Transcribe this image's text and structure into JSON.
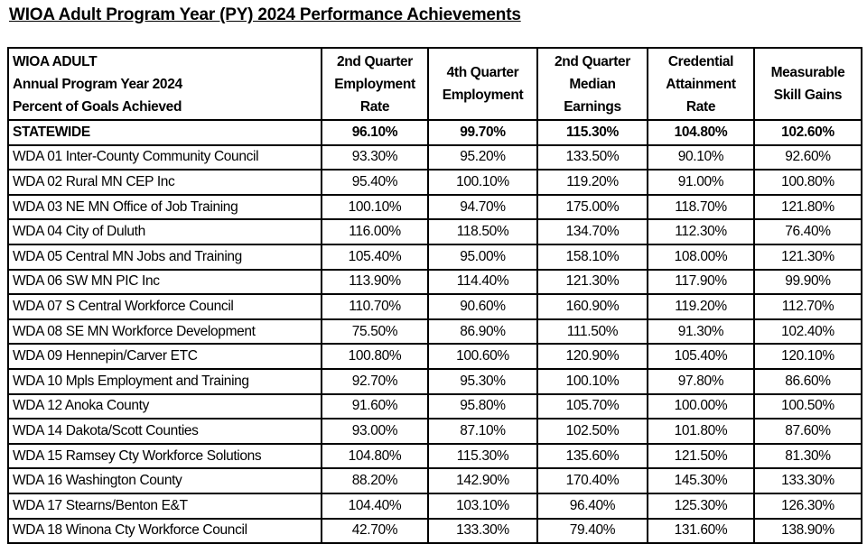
{
  "title": "WIOA Adult Program Year (PY) 2024 Performance Achievements",
  "header": {
    "label_lines": [
      "WIOA ADULT",
      "Annual Program Year 2024",
      "Percent of Goals Achieved"
    ],
    "columns": [
      [
        "2nd Quarter",
        "Employment",
        "Rate"
      ],
      [
        "4th Quarter",
        "Employment"
      ],
      [
        "2nd Quarter",
        "Median",
        "Earnings"
      ],
      [
        "Credential",
        "Attainment",
        "Rate"
      ],
      [
        "Measurable",
        "Skill Gains"
      ]
    ]
  },
  "rows": [
    {
      "label": "STATEWIDE",
      "values": [
        "96.10%",
        "99.70%",
        "115.30%",
        "104.80%",
        "102.60%"
      ]
    },
    {
      "label": "WDA 01 Inter-County Community Council",
      "values": [
        "93.30%",
        "95.20%",
        "133.50%",
        "90.10%",
        "92.60%"
      ]
    },
    {
      "label": "WDA 02 Rural MN CEP Inc",
      "values": [
        "95.40%",
        "100.10%",
        "119.20%",
        "91.00%",
        "100.80%"
      ]
    },
    {
      "label": "WDA 03 NE MN Office of Job Training",
      "values": [
        "100.10%",
        "94.70%",
        "175.00%",
        "118.70%",
        "121.80%"
      ]
    },
    {
      "label": "WDA 04 City of Duluth",
      "values": [
        "116.00%",
        "118.50%",
        "134.70%",
        "112.30%",
        "76.40%"
      ]
    },
    {
      "label": "WDA 05 Central MN Jobs and Training",
      "values": [
        "105.40%",
        "95.00%",
        "158.10%",
        "108.00%",
        "121.30%"
      ]
    },
    {
      "label": "WDA 06 SW MN PIC Inc",
      "values": [
        "113.90%",
        "114.40%",
        "121.30%",
        "117.90%",
        "99.90%"
      ]
    },
    {
      "label": "WDA 07 S Central Workforce Council",
      "values": [
        "110.70%",
        "90.60%",
        "160.90%",
        "119.20%",
        "112.70%"
      ]
    },
    {
      "label": "WDA 08 SE MN Workforce Development",
      "values": [
        "75.50%",
        "86.90%",
        "111.50%",
        "91.30%",
        "102.40%"
      ]
    },
    {
      "label": "WDA 09 Hennepin/Carver ETC",
      "values": [
        "100.80%",
        "100.60%",
        "120.90%",
        "105.40%",
        "120.10%"
      ]
    },
    {
      "label": "WDA 10 Mpls Employment and Training",
      "values": [
        "92.70%",
        "95.30%",
        "100.10%",
        "97.80%",
        "86.60%"
      ]
    },
    {
      "label": "WDA 12 Anoka County",
      "values": [
        "91.60%",
        "95.80%",
        "105.70%",
        "100.00%",
        "100.50%"
      ]
    },
    {
      "label": "WDA 14 Dakota/Scott Counties",
      "values": [
        "93.00%",
        "87.10%",
        "102.50%",
        "101.80%",
        "87.60%"
      ]
    },
    {
      "label": "WDA 15 Ramsey Cty Workforce Solutions",
      "values": [
        "104.80%",
        "115.30%",
        "135.60%",
        "121.50%",
        "81.30%"
      ]
    },
    {
      "label": "WDA 16 Washington County",
      "values": [
        "88.20%",
        "142.90%",
        "170.40%",
        "145.30%",
        "133.30%"
      ]
    },
    {
      "label": "WDA 17 Stearns/Benton E&T",
      "values": [
        "104.40%",
        "103.10%",
        "96.40%",
        "125.30%",
        "126.30%"
      ]
    },
    {
      "label": "WDA 18 Winona Cty Workforce Council",
      "values": [
        "42.70%",
        "133.30%",
        "79.40%",
        "131.60%",
        "138.90%"
      ]
    }
  ]
}
